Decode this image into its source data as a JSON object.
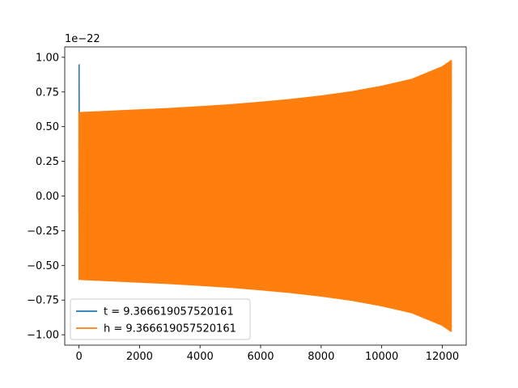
{
  "chart_data": {
    "type": "line",
    "title": "",
    "xlabel": "",
    "ylabel": "",
    "y_offset_label": "1e−22",
    "xlim": [
      -470,
      12790
    ],
    "ylim": [
      -1.075,
      1.075
    ],
    "xticks": [
      0,
      2000,
      4000,
      6000,
      8000,
      10000,
      12000
    ],
    "xtick_labels": [
      "0",
      "2000",
      "4000",
      "6000",
      "8000",
      "10000",
      "12000"
    ],
    "yticks": [
      -1.0,
      -0.75,
      -0.5,
      -0.25,
      0.0,
      0.25,
      0.5,
      0.75,
      1.0
    ],
    "ytick_labels": [
      "−1.00",
      "−0.75",
      "−0.50",
      "−0.25",
      "0.00",
      "0.25",
      "0.50",
      "0.75",
      "1.00"
    ],
    "grid": false,
    "legend_position": "lower-left",
    "series": [
      {
        "name": "t = 9.366619057520161",
        "color": "#1f77b4",
        "x": [
          0,
          5,
          10,
          15,
          20,
          25
        ],
        "y": [
          -0.12,
          0.95,
          -0.1,
          0.6,
          -0.6,
          0.55
        ]
      },
      {
        "name": "h = 9.366619057520161",
        "color": "#ff7f0e",
        "x": [
          0,
          1000,
          2000,
          3000,
          4000,
          5000,
          6000,
          7000,
          8000,
          9000,
          10000,
          11000,
          12000,
          12300
        ],
        "y_upper": [
          0.605,
          0.615,
          0.625,
          0.635,
          0.648,
          0.662,
          0.68,
          0.7,
          0.725,
          0.755,
          0.795,
          0.845,
          0.935,
          0.98
        ],
        "y_lower": [
          -0.605,
          -0.615,
          -0.625,
          -0.635,
          -0.648,
          -0.662,
          -0.68,
          -0.7,
          -0.725,
          -0.755,
          -0.795,
          -0.845,
          -0.935,
          -0.98
        ]
      }
    ]
  }
}
